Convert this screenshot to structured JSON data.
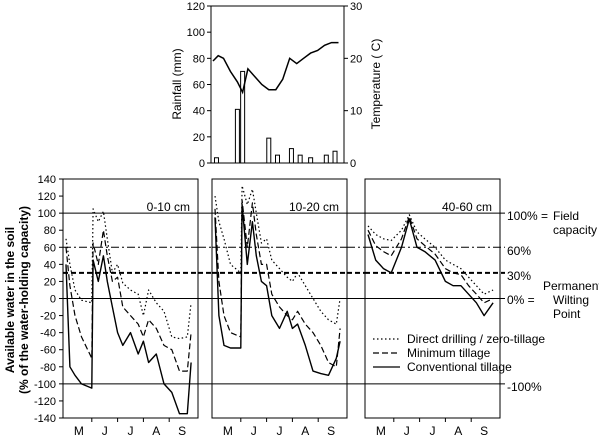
{
  "chart_data": [
    {
      "type": "bar+line",
      "panel": "weather",
      "left_axis": {
        "label": "Rainfall (mm)",
        "ylim": [
          0,
          120
        ],
        "ticks": [
          "0",
          "20",
          "40",
          "60",
          "80",
          "100",
          "120"
        ]
      },
      "right_axis": {
        "label": "Temperature ( C)",
        "ylim": [
          0,
          30
        ],
        "ticks": [
          "0",
          "10",
          "20",
          "30"
        ]
      },
      "rainfall_bars": {
        "x": [
          0.2,
          1.4,
          1.7,
          3.2,
          3.7,
          4.5,
          5.0,
          5.6,
          6.5,
          7.0
        ],
        "values": [
          4,
          41,
          70,
          19,
          6,
          11,
          6,
          4,
          6,
          9
        ]
      },
      "temperature": {
        "x": [
          0,
          0.3,
          0.6,
          1.0,
          1.4,
          1.7,
          2.0,
          2.4,
          2.8,
          3.2,
          3.6,
          4.0,
          4.4,
          4.8,
          5.2,
          5.6,
          6.0,
          6.4,
          6.8,
          7.2
        ],
        "values": [
          19.5,
          20.5,
          20,
          17.5,
          15.5,
          13.5,
          18,
          16.5,
          15,
          14,
          14,
          16,
          20,
          19,
          20,
          21,
          21.5,
          22.5,
          23,
          23
        ]
      }
    },
    {
      "type": "line",
      "panel": "soil-water",
      "ylabel": [
        "Available water in the soil",
        "(% of the water-holding capacity)"
      ],
      "ylim": [
        -140,
        140
      ],
      "yticks": [
        "140",
        "120",
        "100",
        "80",
        "60",
        "40",
        "20",
        "0",
        "-20",
        "-40",
        "-60",
        "-80",
        "-100",
        "-120",
        "-140"
      ],
      "months": [
        "M",
        "J",
        "J",
        "A",
        "S"
      ],
      "reference_lines": [
        {
          "value": 100,
          "style": "solid",
          "label": "100% =",
          "note": [
            "Field",
            "capacity"
          ]
        },
        {
          "value": 60,
          "style": "dashdot",
          "label": "60%"
        },
        {
          "value": 30,
          "style": "dashed-bold",
          "label": "30%"
        },
        {
          "value": 0,
          "style": "solid",
          "label": "0% =",
          "note": [
            "Permanent",
            "Wilting",
            "Point"
          ]
        },
        {
          "value": -100,
          "style": "solid",
          "label": "-100%"
        }
      ],
      "legend": [
        "Direct drilling / zero-tillage",
        "Minimum tillage",
        "Conventional tillage"
      ],
      "legend_position": "bottom-right",
      "x_units": "month index (0 = start of M, 5 = end of S)",
      "depths": [
        {
          "label": "0-10 cm",
          "series": [
            {
              "name": "Direct drilling / zero-tillage",
              "style": "dotted",
              "x": [
                0,
                0.15,
                0.35,
                0.6,
                1.0,
                1.05,
                1.25,
                1.45,
                1.6,
                1.8,
                2.0,
                2.2,
                2.5,
                2.8,
                3.0,
                3.2,
                3.5,
                3.8,
                4.1,
                4.4,
                4.7,
                4.85
              ],
              "y": [
                70,
                40,
                10,
                -2,
                -5,
                105,
                90,
                102,
                70,
                30,
                40,
                18,
                10,
                5,
                -20,
                10,
                -5,
                -15,
                -45,
                -47,
                -45,
                -5
              ]
            },
            {
              "name": "Minimum tillage",
              "style": "dashed",
              "x": [
                0,
                0.15,
                0.35,
                0.6,
                1.0,
                1.05,
                1.25,
                1.45,
                1.6,
                1.8,
                2.0,
                2.2,
                2.5,
                2.8,
                3.0,
                3.2,
                3.5,
                3.8,
                4.1,
                4.4,
                4.7,
                4.85
              ],
              "y": [
                60,
                15,
                -20,
                -45,
                -70,
                65,
                40,
                80,
                50,
                20,
                25,
                -10,
                -20,
                -30,
                -45,
                -25,
                -35,
                -55,
                -60,
                -85,
                -85,
                -40
              ]
            },
            {
              "name": "Conventional tillage",
              "style": "solid",
              "x": [
                0,
                0.15,
                0.35,
                0.6,
                1.0,
                1.05,
                1.25,
                1.45,
                1.6,
                1.8,
                2.0,
                2.2,
                2.5,
                2.8,
                3.0,
                3.2,
                3.5,
                3.8,
                4.1,
                4.4,
                4.7,
                4.85
              ],
              "y": [
                40,
                -80,
                -90,
                -100,
                -105,
                45,
                20,
                50,
                20,
                -10,
                -40,
                -55,
                -40,
                -65,
                -50,
                -75,
                -65,
                -100,
                -110,
                -135,
                -135,
                -75
              ]
            }
          ]
        },
        {
          "label": "10-20 cm",
          "series": [
            {
              "name": "Direct drilling / zero-tillage",
              "style": "dotted",
              "x": [
                0,
                0.15,
                0.35,
                0.6,
                1.0,
                1.05,
                1.25,
                1.45,
                1.6,
                1.8,
                2.0,
                2.2,
                2.5,
                2.8,
                3.0,
                3.2,
                3.5,
                3.8,
                4.1,
                4.4,
                4.7,
                4.85
              ],
              "y": [
                120,
                90,
                70,
                40,
                30,
                132,
                110,
                128,
                100,
                65,
                70,
                45,
                35,
                25,
                20,
                30,
                15,
                0,
                -15,
                -25,
                -30,
                0
              ]
            },
            {
              "name": "Minimum tillage",
              "style": "dashed",
              "x": [
                0,
                0.15,
                0.35,
                0.6,
                1.0,
                1.05,
                1.25,
                1.45,
                1.6,
                1.8,
                2.0,
                2.2,
                2.5,
                2.8,
                3.0,
                3.2,
                3.5,
                3.8,
                4.1,
                4.4,
                4.7,
                4.85
              ],
              "y": [
                105,
                20,
                -20,
                -40,
                -45,
                115,
                60,
                112,
                75,
                40,
                40,
                5,
                -10,
                -20,
                -25,
                -15,
                -30,
                -40,
                -55,
                -75,
                -80,
                -35
              ]
            },
            {
              "name": "Conventional tillage",
              "style": "solid",
              "x": [
                0,
                0.15,
                0.35,
                0.6,
                1.0,
                1.05,
                1.25,
                1.45,
                1.6,
                1.8,
                2.0,
                2.2,
                2.5,
                2.8,
                3.0,
                3.2,
                3.5,
                3.8,
                4.1,
                4.4,
                4.7,
                4.85
              ],
              "y": [
                95,
                -20,
                -55,
                -58,
                -58,
                110,
                40,
                90,
                50,
                20,
                15,
                -20,
                -35,
                -15,
                -35,
                -30,
                -55,
                -85,
                -88,
                -90,
                -70,
                -50
              ]
            }
          ]
        },
        {
          "label": "40-60 cm",
          "series": [
            {
              "name": "Direct drilling / zero-tillage",
              "style": "dotted",
              "x": [
                0,
                0.3,
                0.6,
                0.9,
                1.3,
                1.6,
                1.9,
                2.2,
                2.6,
                3.0,
                3.3,
                3.6,
                3.9,
                4.2,
                4.5,
                4.85
              ],
              "y": [
                85,
                75,
                70,
                68,
                80,
                98,
                78,
                70,
                60,
                45,
                40,
                35,
                25,
                15,
                5,
                10
              ]
            },
            {
              "name": "Minimum tillage",
              "style": "dashed",
              "x": [
                0,
                0.3,
                0.6,
                0.9,
                1.3,
                1.6,
                1.9,
                2.2,
                2.6,
                3.0,
                3.3,
                3.6,
                3.9,
                4.2,
                4.5,
                4.85
              ],
              "y": [
                80,
                62,
                55,
                50,
                70,
                96,
                70,
                62,
                52,
                35,
                30,
                28,
                15,
                5,
                -5,
                0
              ]
            },
            {
              "name": "Conventional tillage",
              "style": "solid",
              "x": [
                0,
                0.3,
                0.6,
                0.9,
                1.3,
                1.6,
                1.9,
                2.2,
                2.6,
                3.0,
                3.3,
                3.6,
                3.9,
                4.2,
                4.5,
                4.85
              ],
              "y": [
                75,
                45,
                35,
                30,
                60,
                93,
                60,
                55,
                45,
                20,
                15,
                15,
                5,
                -5,
                -20,
                -5
              ]
            }
          ]
        }
      ]
    }
  ]
}
